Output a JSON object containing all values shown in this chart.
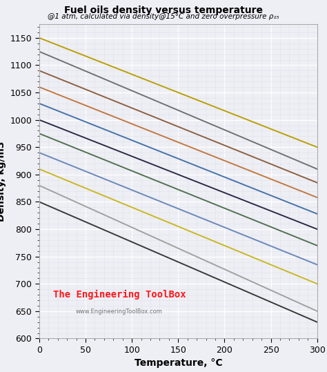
{
  "title": "Fuel oils density versus temperature",
  "subtitle": "@1 atm, calculated via density@15°C and zero overpressure ρ₁₅",
  "xlabel": "Temperature, °C",
  "ylabel": "Density, kg/m3",
  "xlim": [
    0,
    300
  ],
  "ylim": [
    600,
    1175
  ],
  "xticks": [
    0,
    50,
    100,
    150,
    200,
    250,
    300
  ],
  "yticks": [
    600,
    650,
    700,
    750,
    800,
    850,
    900,
    950,
    1000,
    1050,
    1100,
    1150
  ],
  "watermark": "The Engineering ToolBox",
  "watermark2": "www.EngineeringToolBox.com",
  "lines": [
    {
      "y0": 1150,
      "y300": 950,
      "color": "#b8a000",
      "lw": 1.4
    },
    {
      "y0": 1125,
      "y300": 910,
      "color": "#707070",
      "lw": 1.4
    },
    {
      "y0": 1090,
      "y300": 885,
      "color": "#8b6040",
      "lw": 1.4
    },
    {
      "y0": 1060,
      "y300": 858,
      "color": "#c07840",
      "lw": 1.4
    },
    {
      "y0": 1030,
      "y300": 828,
      "color": "#4472a8",
      "lw": 1.4
    },
    {
      "y0": 1000,
      "y300": 800,
      "color": "#2a2a45",
      "lw": 1.4
    },
    {
      "y0": 975,
      "y300": 770,
      "color": "#507050",
      "lw": 1.4
    },
    {
      "y0": 940,
      "y300": 735,
      "color": "#6888b8",
      "lw": 1.4
    },
    {
      "y0": 910,
      "y300": 700,
      "color": "#c8b820",
      "lw": 1.4
    },
    {
      "y0": 880,
      "y300": 650,
      "color": "#a0a0a0",
      "lw": 1.4
    },
    {
      "y0": 850,
      "y300": 630,
      "color": "#383838",
      "lw": 1.4
    }
  ],
  "bg_color": "#eeeef5",
  "plot_bg_color": "#eeeef5",
  "grid_major_color": "#ffffff",
  "grid_minor_color": "#e0e0ea"
}
